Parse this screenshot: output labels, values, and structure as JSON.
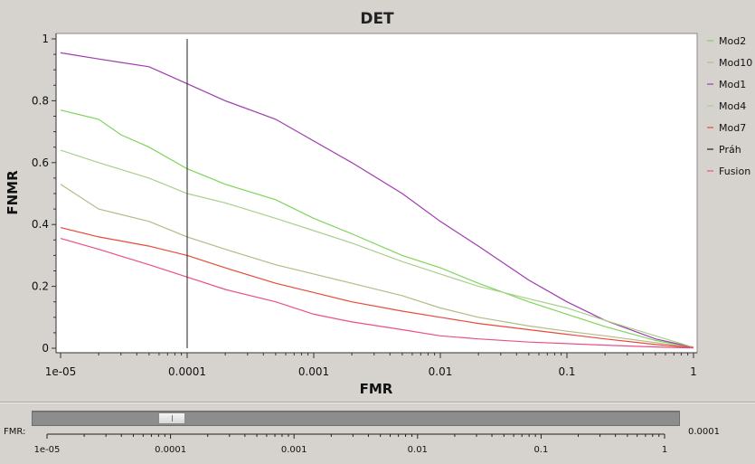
{
  "chart_data": {
    "type": "line",
    "title": "DET",
    "xlabel": "FMR",
    "ylabel": "FNMR",
    "xscale": "log",
    "xlim": [
      1e-05,
      1
    ],
    "ylim": [
      0,
      1
    ],
    "x_tick_labels": [
      "1e-05",
      "0.0001",
      "0.001",
      "0.01",
      "0.1",
      "1"
    ],
    "y_tick_labels": [
      "0",
      "0.2",
      "0.4",
      "0.6",
      "0.8",
      "1"
    ],
    "grid": false,
    "legend_position": "right",
    "threshold_x": 0.0001,
    "series": [
      {
        "name": "Mod2",
        "color": "#7fd45a",
        "points": [
          [
            1e-05,
            0.77
          ],
          [
            2e-05,
            0.74
          ],
          [
            3e-05,
            0.69
          ],
          [
            5e-05,
            0.65
          ],
          [
            0.0001,
            0.58
          ],
          [
            0.0002,
            0.53
          ],
          [
            0.0005,
            0.48
          ],
          [
            0.001,
            0.42
          ],
          [
            0.002,
            0.37
          ],
          [
            0.005,
            0.3
          ],
          [
            0.01,
            0.26
          ],
          [
            0.02,
            0.21
          ],
          [
            0.05,
            0.15
          ],
          [
            0.1,
            0.11
          ],
          [
            0.2,
            0.07
          ],
          [
            0.5,
            0.025
          ],
          [
            1,
            0.003
          ]
        ]
      },
      {
        "name": "Mod10",
        "color": "#b4bb84",
        "points": [
          [
            1e-05,
            0.53
          ],
          [
            2e-05,
            0.45
          ],
          [
            5e-05,
            0.41
          ],
          [
            0.0001,
            0.36
          ],
          [
            0.0002,
            0.32
          ],
          [
            0.0005,
            0.27
          ],
          [
            0.001,
            0.24
          ],
          [
            0.002,
            0.21
          ],
          [
            0.005,
            0.17
          ],
          [
            0.01,
            0.13
          ],
          [
            0.02,
            0.1
          ],
          [
            0.05,
            0.072
          ],
          [
            0.1,
            0.055
          ],
          [
            0.2,
            0.04
          ],
          [
            0.5,
            0.018
          ],
          [
            1,
            0.003
          ]
        ]
      },
      {
        "name": "Mod1",
        "color": "#a03ab0",
        "points": [
          [
            1e-05,
            0.955
          ],
          [
            2e-05,
            0.935
          ],
          [
            5e-05,
            0.91
          ],
          [
            0.0001,
            0.855
          ],
          [
            0.0002,
            0.8
          ],
          [
            0.0005,
            0.74
          ],
          [
            0.001,
            0.67
          ],
          [
            0.002,
            0.6
          ],
          [
            0.005,
            0.5
          ],
          [
            0.01,
            0.41
          ],
          [
            0.02,
            0.33
          ],
          [
            0.05,
            0.22
          ],
          [
            0.1,
            0.15
          ],
          [
            0.2,
            0.09
          ],
          [
            0.5,
            0.03
          ],
          [
            1,
            0.003
          ]
        ]
      },
      {
        "name": "Mod4",
        "color": "#a8cf8c",
        "points": [
          [
            1e-05,
            0.64
          ],
          [
            2e-05,
            0.6
          ],
          [
            5e-05,
            0.55
          ],
          [
            0.0001,
            0.5
          ],
          [
            0.0002,
            0.47
          ],
          [
            0.0005,
            0.42
          ],
          [
            0.001,
            0.38
          ],
          [
            0.002,
            0.34
          ],
          [
            0.005,
            0.28
          ],
          [
            0.01,
            0.24
          ],
          [
            0.02,
            0.2
          ],
          [
            0.05,
            0.16
          ],
          [
            0.1,
            0.13
          ],
          [
            0.2,
            0.09
          ],
          [
            0.5,
            0.04
          ],
          [
            1,
            0.003
          ]
        ]
      },
      {
        "name": "Mod7",
        "color": "#e8493a",
        "points": [
          [
            1e-05,
            0.39
          ],
          [
            2e-05,
            0.36
          ],
          [
            5e-05,
            0.33
          ],
          [
            0.0001,
            0.3
          ],
          [
            0.0002,
            0.26
          ],
          [
            0.0005,
            0.21
          ],
          [
            0.001,
            0.18
          ],
          [
            0.002,
            0.15
          ],
          [
            0.005,
            0.12
          ],
          [
            0.01,
            0.1
          ],
          [
            0.02,
            0.08
          ],
          [
            0.05,
            0.06
          ],
          [
            0.1,
            0.045
          ],
          [
            0.2,
            0.03
          ],
          [
            0.5,
            0.012
          ],
          [
            1,
            0.002
          ]
        ]
      },
      {
        "name": "Práh",
        "color": "#222222",
        "points": []
      },
      {
        "name": "Fusion",
        "color": "#ea4f8a",
        "points": [
          [
            1e-05,
            0.355
          ],
          [
            2e-05,
            0.32
          ],
          [
            5e-05,
            0.27
          ],
          [
            0.0001,
            0.23
          ],
          [
            0.0002,
            0.19
          ],
          [
            0.0005,
            0.15
          ],
          [
            0.001,
            0.11
          ],
          [
            0.002,
            0.085
          ],
          [
            0.005,
            0.06
          ],
          [
            0.01,
            0.04
          ],
          [
            0.02,
            0.03
          ],
          [
            0.05,
            0.02
          ],
          [
            0.1,
            0.015
          ],
          [
            0.2,
            0.01
          ],
          [
            0.5,
            0.004
          ],
          [
            1,
            0.001
          ]
        ]
      }
    ]
  },
  "slider": {
    "label": "FMR:",
    "value": "0.0001",
    "scale_labels": [
      "1e-05",
      "0.0001",
      "0.001",
      "0.01",
      "0.1",
      "1"
    ]
  }
}
